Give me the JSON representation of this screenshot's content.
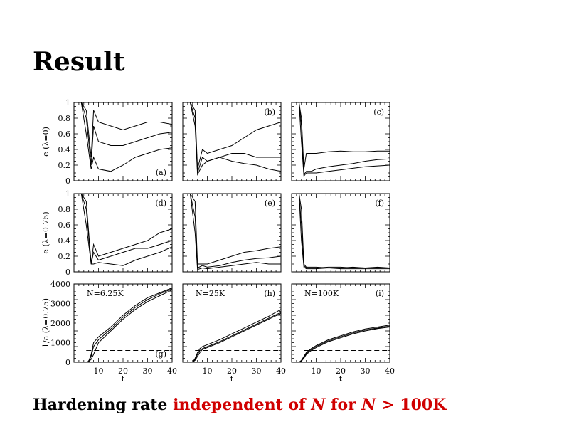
{
  "slide": {
    "title": "Result"
  },
  "caption": {
    "part1": "Hardening rate",
    "part2": "independent of",
    "var1": "N",
    "part3": "for",
    "var2": "N",
    "op": ">",
    "value": "100K"
  },
  "chart_data": {
    "type": "line",
    "layout": "3x3 grid",
    "x": {
      "label": "t",
      "range": [
        0,
        40
      ],
      "ticks": [
        10,
        20,
        30,
        40
      ]
    },
    "rows": [
      {
        "ylabel": "e  (λ=0)",
        "ylim": [
          0,
          1
        ],
        "yticks": [
          "0",
          "0.2",
          "0.4",
          "0.6",
          "0.8",
          "1"
        ]
      },
      {
        "ylabel": "e  (λ=0.75)",
        "ylim": [
          0,
          1
        ],
        "yticks": [
          "0",
          "0.2",
          "0.4",
          "0.6",
          "0.8",
          "1"
        ]
      },
      {
        "ylabel": "1/a  (λ=0.75)",
        "ylim": [
          0,
          4000
        ],
        "yticks": [
          "0",
          "1000",
          "2000",
          "3000",
          "4000"
        ]
      }
    ],
    "panels": [
      {
        "id": "(a)",
        "row": 0,
        "col": 0,
        "label_pos": "bottom-right",
        "series": [
          {
            "x": [
              3,
              5,
              7,
              8,
              10,
              15,
              20,
              25,
              30,
              35,
              40
            ],
            "y": [
              1.0,
              0.9,
              0.3,
              0.9,
              0.75,
              0.7,
              0.65,
              0.7,
              0.75,
              0.75,
              0.72
            ]
          },
          {
            "x": [
              3,
              5,
              7,
              8,
              10,
              15,
              20,
              25,
              30,
              35,
              40
            ],
            "y": [
              1.0,
              0.8,
              0.2,
              0.7,
              0.5,
              0.45,
              0.45,
              0.5,
              0.55,
              0.6,
              0.62
            ]
          },
          {
            "x": [
              3,
              5,
              7,
              8,
              10,
              15,
              20,
              25,
              30,
              35,
              40
            ],
            "y": [
              1.0,
              0.6,
              0.15,
              0.3,
              0.15,
              0.12,
              0.2,
              0.3,
              0.35,
              0.4,
              0.42
            ]
          }
        ]
      },
      {
        "id": "(b)",
        "row": 0,
        "col": 1,
        "label_pos": "top-right",
        "series": [
          {
            "x": [
              3,
              5,
              6,
              8,
              10,
              15,
              20,
              25,
              30,
              35,
              40
            ],
            "y": [
              1.0,
              0.9,
              0.15,
              0.4,
              0.35,
              0.4,
              0.45,
              0.55,
              0.65,
              0.7,
              0.75
            ]
          },
          {
            "x": [
              3,
              5,
              6,
              8,
              10,
              15,
              20,
              25,
              30,
              35,
              40
            ],
            "y": [
              1.0,
              0.8,
              0.1,
              0.3,
              0.25,
              0.3,
              0.35,
              0.35,
              0.3,
              0.3,
              0.3
            ]
          },
          {
            "x": [
              3,
              5,
              6,
              8,
              10,
              15,
              20,
              25,
              30,
              35,
              40
            ],
            "y": [
              1.0,
              0.7,
              0.08,
              0.2,
              0.25,
              0.3,
              0.25,
              0.22,
              0.2,
              0.15,
              0.12
            ]
          }
        ]
      },
      {
        "id": "(c)",
        "row": 0,
        "col": 2,
        "label_pos": "top-right",
        "series": [
          {
            "x": [
              3,
              4,
              5,
              6,
              8,
              10,
              15,
              20,
              25,
              30,
              35,
              40
            ],
            "y": [
              1.0,
              0.8,
              0.15,
              0.35,
              0.35,
              0.35,
              0.37,
              0.38,
              0.37,
              0.37,
              0.38,
              0.38
            ]
          },
          {
            "x": [
              3,
              4,
              5,
              6,
              8,
              10,
              15,
              20,
              25,
              30,
              35,
              40
            ],
            "y": [
              1.0,
              0.7,
              0.08,
              0.12,
              0.12,
              0.15,
              0.18,
              0.2,
              0.22,
              0.25,
              0.27,
              0.28
            ]
          },
          {
            "x": [
              3,
              4,
              5,
              6,
              8,
              10,
              15,
              20,
              25,
              30,
              35,
              40
            ],
            "y": [
              1.0,
              0.5,
              0.06,
              0.1,
              0.1,
              0.1,
              0.12,
              0.14,
              0.16,
              0.18,
              0.19,
              0.2
            ]
          }
        ]
      },
      {
        "id": "(d)",
        "row": 1,
        "col": 0,
        "label_pos": "top-right",
        "series": [
          {
            "x": [
              3,
              5,
              7,
              8,
              10,
              15,
              20,
              25,
              30,
              35,
              40
            ],
            "y": [
              1.0,
              0.9,
              0.1,
              0.35,
              0.2,
              0.25,
              0.3,
              0.35,
              0.4,
              0.5,
              0.55
            ]
          },
          {
            "x": [
              3,
              5,
              7,
              8,
              10,
              15,
              20,
              25,
              30,
              35,
              40
            ],
            "y": [
              1.0,
              0.8,
              0.1,
              0.25,
              0.15,
              0.2,
              0.25,
              0.3,
              0.3,
              0.35,
              0.4
            ]
          },
          {
            "x": [
              3,
              5,
              7,
              8,
              10,
              15,
              20,
              25,
              30,
              35,
              40
            ],
            "y": [
              1.0,
              0.6,
              0.1,
              0.1,
              0.12,
              0.1,
              0.08,
              0.15,
              0.2,
              0.25,
              0.32
            ]
          }
        ]
      },
      {
        "id": "(e)",
        "row": 1,
        "col": 1,
        "label_pos": "top-right",
        "series": [
          {
            "x": [
              3,
              5,
              6,
              8,
              10,
              15,
              20,
              25,
              30,
              35,
              40
            ],
            "y": [
              1.0,
              0.9,
              0.1,
              0.1,
              0.1,
              0.15,
              0.2,
              0.25,
              0.27,
              0.3,
              0.32
            ]
          },
          {
            "x": [
              3,
              5,
              6,
              8,
              10,
              15,
              20,
              25,
              30,
              35,
              40
            ],
            "y": [
              1.0,
              0.7,
              0.05,
              0.08,
              0.06,
              0.08,
              0.12,
              0.15,
              0.17,
              0.18,
              0.2
            ]
          },
          {
            "x": [
              3,
              5,
              6,
              8,
              10,
              15,
              20,
              25,
              30,
              35,
              40
            ],
            "y": [
              1.0,
              0.5,
              0.03,
              0.05,
              0.04,
              0.06,
              0.08,
              0.1,
              0.12,
              0.1,
              0.1
            ]
          }
        ]
      },
      {
        "id": "(f)",
        "row": 1,
        "col": 2,
        "label_pos": "top-right",
        "series": [
          {
            "x": [
              3,
              4,
              5,
              6,
              8,
              10,
              15,
              20,
              25,
              30,
              35,
              40
            ],
            "y": [
              1.0,
              0.8,
              0.1,
              0.06,
              0.06,
              0.06,
              0.05,
              0.05,
              0.06,
              0.05,
              0.05,
              0.05
            ]
          },
          {
            "x": [
              3,
              4,
              5,
              6,
              8,
              10,
              15,
              20,
              25,
              30,
              35,
              40
            ],
            "y": [
              1.0,
              0.6,
              0.08,
              0.05,
              0.05,
              0.05,
              0.06,
              0.06,
              0.05,
              0.05,
              0.06,
              0.05
            ]
          },
          {
            "x": [
              3,
              4,
              5,
              6,
              8,
              10,
              15,
              20,
              25,
              30,
              35,
              40
            ],
            "y": [
              1.0,
              0.4,
              0.06,
              0.04,
              0.04,
              0.04,
              0.05,
              0.04,
              0.04,
              0.04,
              0.04,
              0.04
            ]
          }
        ]
      },
      {
        "id": "(g)",
        "row": 2,
        "col": 0,
        "label_pos": "bottom-right",
        "title": "N=6.25K",
        "series": [
          {
            "x": [
              0,
              5,
              6,
              7,
              8,
              10,
              15,
              20,
              25,
              30,
              35,
              40
            ],
            "y": [
              0,
              0,
              50,
              400,
              1000,
              1300,
              1800,
              2400,
              2900,
              3300,
              3550,
              3800
            ]
          },
          {
            "x": [
              0,
              5,
              6,
              7,
              8,
              10,
              15,
              20,
              25,
              30,
              35,
              40
            ],
            "y": [
              0,
              0,
              50,
              300,
              800,
              1150,
              1700,
              2300,
              2800,
              3200,
              3500,
              3750
            ]
          },
          {
            "x": [
              0,
              5,
              6,
              7,
              8,
              10,
              15,
              20,
              25,
              30,
              35,
              40
            ],
            "y": [
              0,
              0,
              30,
              150,
              400,
              1000,
              1600,
              2200,
              2700,
              3100,
              3400,
              3700
            ]
          }
        ],
        "reference_line": {
          "x": [
            5,
            40
          ],
          "y": [
            600,
            600
          ],
          "style": "dashed"
        }
      },
      {
        "id": "(h)",
        "row": 2,
        "col": 1,
        "label_pos": "top-right",
        "title": "N=25K",
        "series": [
          {
            "x": [
              0,
              4,
              5,
              6,
              7,
              8,
              10,
              15,
              20,
              25,
              30,
              35,
              40
            ],
            "y": [
              0,
              0,
              200,
              500,
              700,
              800,
              900,
              1150,
              1450,
              1750,
              2050,
              2350,
              2700
            ]
          },
          {
            "x": [
              0,
              4,
              5,
              6,
              7,
              8,
              10,
              15,
              20,
              25,
              30,
              35,
              40
            ],
            "y": [
              0,
              0,
              150,
              400,
              600,
              700,
              800,
              1050,
              1350,
              1650,
              1950,
              2250,
              2550
            ]
          },
          {
            "x": [
              0,
              4,
              5,
              6,
              7,
              8,
              10,
              15,
              20,
              25,
              30,
              35,
              40
            ],
            "y": [
              0,
              0,
              100,
              300,
              500,
              650,
              750,
              1000,
              1300,
              1600,
              1900,
              2200,
              2500
            ]
          }
        ],
        "reference_line": {
          "x": [
            5,
            40
          ],
          "y": [
            600,
            600
          ],
          "style": "dashed"
        }
      },
      {
        "id": "(i)",
        "row": 2,
        "col": 2,
        "label_pos": "top-right",
        "title": "N=100K",
        "series": [
          {
            "x": [
              0,
              3,
              4,
              5,
              6,
              8,
              10,
              15,
              20,
              25,
              30,
              35,
              40
            ],
            "y": [
              0,
              0,
              100,
              300,
              500,
              700,
              850,
              1150,
              1350,
              1550,
              1700,
              1800,
              1900
            ]
          },
          {
            "x": [
              0,
              3,
              4,
              5,
              6,
              8,
              10,
              15,
              20,
              25,
              30,
              35,
              40
            ],
            "y": [
              0,
              0,
              80,
              250,
              450,
              650,
              800,
              1100,
              1300,
              1500,
              1650,
              1750,
              1850
            ]
          },
          {
            "x": [
              0,
              3,
              4,
              5,
              6,
              8,
              10,
              15,
              20,
              25,
              30,
              35,
              40
            ],
            "y": [
              0,
              0,
              60,
              200,
              400,
              600,
              750,
              1050,
              1250,
              1450,
              1600,
              1720,
              1800
            ]
          }
        ],
        "reference_line": {
          "x": [
            5,
            40
          ],
          "y": [
            600,
            600
          ],
          "style": "dashed"
        }
      }
    ]
  }
}
